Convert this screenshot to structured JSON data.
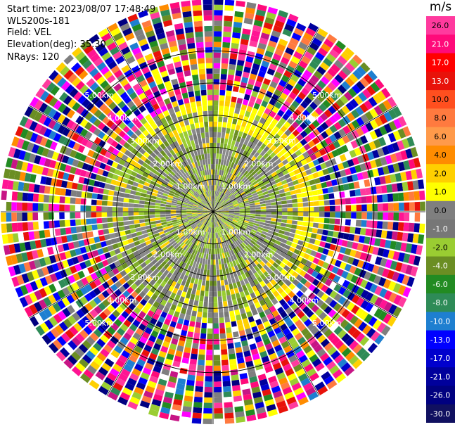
{
  "header": {
    "start_time": "Start time: 2023/08/07 17:48:49",
    "instrument": "WLS200s-181",
    "field": "Field: VEL",
    "elevation": "Elevation(deg): 35.30",
    "nrays": "NRays: 120"
  },
  "chart_data": {
    "type": "heatmap",
    "projection": "polar PPI (plan position indicator)",
    "grid": true,
    "range_rings_km": [
      1,
      2,
      3,
      4,
      5
    ],
    "range_ring_labels": [
      "1.00km",
      "2.00km",
      "3.00km",
      "4.00km",
      "5.00km"
    ],
    "spokes_deg": [
      0,
      30,
      60,
      90,
      120,
      150,
      180,
      210,
      240,
      270,
      300,
      330
    ],
    "colorbar": {
      "unit": "m/s",
      "range": [
        -30.0,
        26.0
      ],
      "ticks": [
        "26.0",
        "21.0",
        "17.0",
        "13.0",
        "10.0",
        "8.0",
        "6.0",
        "4.0",
        "2.0",
        "1.0",
        "0.0",
        "-1.0",
        "-2.0",
        "-4.0",
        "-6.0",
        "-8.0",
        "-10.0",
        "-13.0",
        "-17.0",
        "-21.0",
        "-26.0",
        "-30.0"
      ],
      "colors": [
        "#ff3a9e",
        "#ff0a7a",
        "#ff0000",
        "#e8120a",
        "#ff4f1f",
        "#ff7a3f",
        "#ff9a4a",
        "#ff8c00",
        "#ffd000",
        "#ffff00",
        "#7f7f7f",
        "#777777",
        "#9acd32",
        "#6b8e23",
        "#228b22",
        "#2e8b57",
        "#1e7fd0",
        "#0000ff",
        "#0000cd",
        "#00009c",
        "#000080",
        "#101060"
      ],
      "location": "right"
    },
    "gates": 40,
    "max_range_km": 6.6,
    "velocity_by_range_km": [
      {
        "range": [
          0,
          1.0
        ],
        "dominant_ms": -1.0,
        "note": "grey / light green with scattered yellow"
      },
      {
        "range": [
          1.0,
          2.7
        ],
        "dominant_ms": -1.5,
        "note": "grey and olive green"
      },
      {
        "range": [
          2.7,
          3.5
        ],
        "dominant_ms": 2.5,
        "note": "yellow arc, strongest on north-east side"
      },
      {
        "range": [
          3.5,
          6.6
        ],
        "dominant_ms": "mixed",
        "note": "noise: all colours"
      }
    ]
  }
}
